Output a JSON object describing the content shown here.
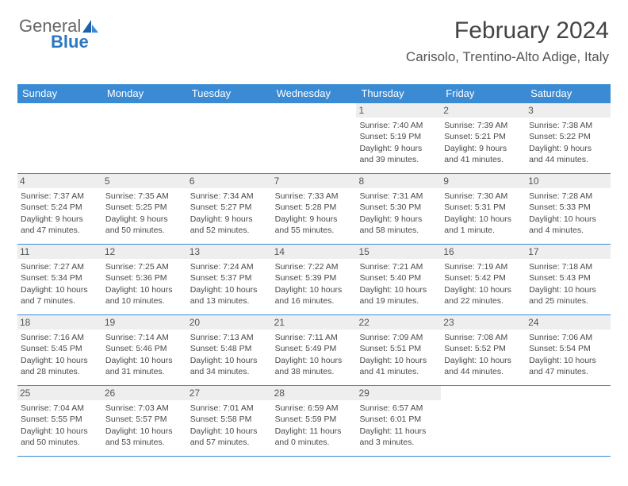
{
  "brand": {
    "part1": "General",
    "part2": "Blue"
  },
  "title": "February 2024",
  "location": "Carisolo, Trentino-Alto Adige, Italy",
  "colors": {
    "headerBg": "#3b8bd4",
    "cellDateBg": "#eeeeee"
  },
  "dayNames": [
    "Sunday",
    "Monday",
    "Tuesday",
    "Wednesday",
    "Thursday",
    "Friday",
    "Saturday"
  ],
  "weeks": [
    [
      {
        "empty": true
      },
      {
        "empty": true
      },
      {
        "empty": true
      },
      {
        "empty": true
      },
      {
        "date": "1",
        "sunrise": "Sunrise: 7:40 AM",
        "sunset": "Sunset: 5:19 PM",
        "day1": "Daylight: 9 hours",
        "day2": "and 39 minutes."
      },
      {
        "date": "2",
        "sunrise": "Sunrise: 7:39 AM",
        "sunset": "Sunset: 5:21 PM",
        "day1": "Daylight: 9 hours",
        "day2": "and 41 minutes."
      },
      {
        "date": "3",
        "sunrise": "Sunrise: 7:38 AM",
        "sunset": "Sunset: 5:22 PM",
        "day1": "Daylight: 9 hours",
        "day2": "and 44 minutes."
      }
    ],
    [
      {
        "date": "4",
        "sunrise": "Sunrise: 7:37 AM",
        "sunset": "Sunset: 5:24 PM",
        "day1": "Daylight: 9 hours",
        "day2": "and 47 minutes."
      },
      {
        "date": "5",
        "sunrise": "Sunrise: 7:35 AM",
        "sunset": "Sunset: 5:25 PM",
        "day1": "Daylight: 9 hours",
        "day2": "and 50 minutes."
      },
      {
        "date": "6",
        "sunrise": "Sunrise: 7:34 AM",
        "sunset": "Sunset: 5:27 PM",
        "day1": "Daylight: 9 hours",
        "day2": "and 52 minutes."
      },
      {
        "date": "7",
        "sunrise": "Sunrise: 7:33 AM",
        "sunset": "Sunset: 5:28 PM",
        "day1": "Daylight: 9 hours",
        "day2": "and 55 minutes."
      },
      {
        "date": "8",
        "sunrise": "Sunrise: 7:31 AM",
        "sunset": "Sunset: 5:30 PM",
        "day1": "Daylight: 9 hours",
        "day2": "and 58 minutes."
      },
      {
        "date": "9",
        "sunrise": "Sunrise: 7:30 AM",
        "sunset": "Sunset: 5:31 PM",
        "day1": "Daylight: 10 hours",
        "day2": "and 1 minute."
      },
      {
        "date": "10",
        "sunrise": "Sunrise: 7:28 AM",
        "sunset": "Sunset: 5:33 PM",
        "day1": "Daylight: 10 hours",
        "day2": "and 4 minutes."
      }
    ],
    [
      {
        "date": "11",
        "sunrise": "Sunrise: 7:27 AM",
        "sunset": "Sunset: 5:34 PM",
        "day1": "Daylight: 10 hours",
        "day2": "and 7 minutes."
      },
      {
        "date": "12",
        "sunrise": "Sunrise: 7:25 AM",
        "sunset": "Sunset: 5:36 PM",
        "day1": "Daylight: 10 hours",
        "day2": "and 10 minutes."
      },
      {
        "date": "13",
        "sunrise": "Sunrise: 7:24 AM",
        "sunset": "Sunset: 5:37 PM",
        "day1": "Daylight: 10 hours",
        "day2": "and 13 minutes."
      },
      {
        "date": "14",
        "sunrise": "Sunrise: 7:22 AM",
        "sunset": "Sunset: 5:39 PM",
        "day1": "Daylight: 10 hours",
        "day2": "and 16 minutes."
      },
      {
        "date": "15",
        "sunrise": "Sunrise: 7:21 AM",
        "sunset": "Sunset: 5:40 PM",
        "day1": "Daylight: 10 hours",
        "day2": "and 19 minutes."
      },
      {
        "date": "16",
        "sunrise": "Sunrise: 7:19 AM",
        "sunset": "Sunset: 5:42 PM",
        "day1": "Daylight: 10 hours",
        "day2": "and 22 minutes."
      },
      {
        "date": "17",
        "sunrise": "Sunrise: 7:18 AM",
        "sunset": "Sunset: 5:43 PM",
        "day1": "Daylight: 10 hours",
        "day2": "and 25 minutes."
      }
    ],
    [
      {
        "date": "18",
        "sunrise": "Sunrise: 7:16 AM",
        "sunset": "Sunset: 5:45 PM",
        "day1": "Daylight: 10 hours",
        "day2": "and 28 minutes."
      },
      {
        "date": "19",
        "sunrise": "Sunrise: 7:14 AM",
        "sunset": "Sunset: 5:46 PM",
        "day1": "Daylight: 10 hours",
        "day2": "and 31 minutes."
      },
      {
        "date": "20",
        "sunrise": "Sunrise: 7:13 AM",
        "sunset": "Sunset: 5:48 PM",
        "day1": "Daylight: 10 hours",
        "day2": "and 34 minutes."
      },
      {
        "date": "21",
        "sunrise": "Sunrise: 7:11 AM",
        "sunset": "Sunset: 5:49 PM",
        "day1": "Daylight: 10 hours",
        "day2": "and 38 minutes."
      },
      {
        "date": "22",
        "sunrise": "Sunrise: 7:09 AM",
        "sunset": "Sunset: 5:51 PM",
        "day1": "Daylight: 10 hours",
        "day2": "and 41 minutes."
      },
      {
        "date": "23",
        "sunrise": "Sunrise: 7:08 AM",
        "sunset": "Sunset: 5:52 PM",
        "day1": "Daylight: 10 hours",
        "day2": "and 44 minutes."
      },
      {
        "date": "24",
        "sunrise": "Sunrise: 7:06 AM",
        "sunset": "Sunset: 5:54 PM",
        "day1": "Daylight: 10 hours",
        "day2": "and 47 minutes."
      }
    ],
    [
      {
        "date": "25",
        "sunrise": "Sunrise: 7:04 AM",
        "sunset": "Sunset: 5:55 PM",
        "day1": "Daylight: 10 hours",
        "day2": "and 50 minutes."
      },
      {
        "date": "26",
        "sunrise": "Sunrise: 7:03 AM",
        "sunset": "Sunset: 5:57 PM",
        "day1": "Daylight: 10 hours",
        "day2": "and 53 minutes."
      },
      {
        "date": "27",
        "sunrise": "Sunrise: 7:01 AM",
        "sunset": "Sunset: 5:58 PM",
        "day1": "Daylight: 10 hours",
        "day2": "and 57 minutes."
      },
      {
        "date": "28",
        "sunrise": "Sunrise: 6:59 AM",
        "sunset": "Sunset: 5:59 PM",
        "day1": "Daylight: 11 hours",
        "day2": "and 0 minutes."
      },
      {
        "date": "29",
        "sunrise": "Sunrise: 6:57 AM",
        "sunset": "Sunset: 6:01 PM",
        "day1": "Daylight: 11 hours",
        "day2": "and 3 minutes."
      },
      {
        "empty": true
      },
      {
        "empty": true
      }
    ]
  ]
}
